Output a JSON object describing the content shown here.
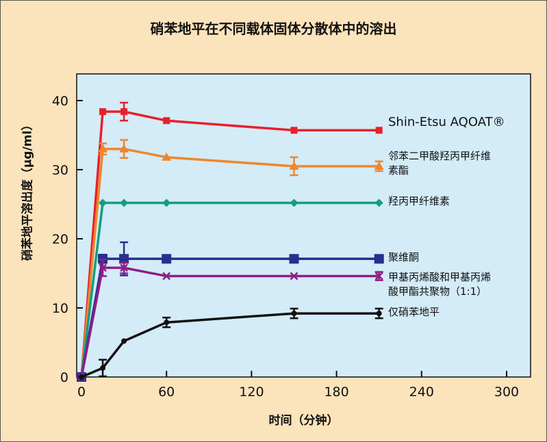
{
  "chart_data": {
    "type": "line",
    "title": "硝苯地平在不同载体固体分散体中的溶出",
    "xlabel": "时间（分钟）",
    "ylabel": "硝苯地平溶出度（μg/ml）",
    "xlim": [
      0,
      300
    ],
    "ylim": [
      0,
      40
    ],
    "xticks": [
      0,
      60,
      120,
      180,
      240,
      300
    ],
    "yticks": [
      0,
      10,
      20,
      30,
      40
    ],
    "x": [
      0,
      15,
      30,
      60,
      150,
      210
    ],
    "legend_placement": "right, labels at series ends",
    "series": [
      {
        "name": "Shin-Etsu AQOAT®",
        "color": "#e8202a",
        "marker": "square",
        "values": [
          0,
          38.4,
          38.4,
          37.1,
          35.7,
          35.7
        ],
        "errors": [
          0,
          0,
          1.3,
          0,
          0,
          0
        ]
      },
      {
        "name": "邻苯二甲酸羟丙甲纤维素酯",
        "label_lines": [
          "邻苯二甲酸羟丙甲纤维",
          "素酯"
        ],
        "color": "#f0862a",
        "marker": "triangle",
        "values": [
          0,
          33,
          33,
          31.8,
          30.5,
          30.5
        ],
        "errors": [
          0,
          0.8,
          1.3,
          0,
          1.3,
          0.7
        ]
      },
      {
        "name": "羟丙甲纤维素",
        "color": "#13a07c",
        "marker": "diamond",
        "values": [
          0,
          25.2,
          25.2,
          25.2,
          25.2,
          25.2
        ],
        "errors": [
          0,
          0,
          0,
          0,
          0,
          0
        ]
      },
      {
        "name": "聚维酮",
        "color": "#26308f",
        "marker": "bigsquare",
        "values": [
          0,
          17.1,
          17.1,
          17.1,
          17.1,
          17.1
        ],
        "errors": [
          0,
          0.6,
          2.4,
          0,
          0,
          0
        ]
      },
      {
        "name": "甲基丙烯酸和甲基丙烯酸甲酯共聚物（1:1）",
        "label_lines": [
          "甲基丙烯酸和甲基丙烯",
          "酸甲酯共聚物（1:1）"
        ],
        "color": "#8e1e86",
        "marker": "x",
        "values": [
          0,
          15.8,
          15.8,
          14.6,
          14.6,
          14.6
        ],
        "errors": [
          0,
          1.2,
          0.8,
          0,
          0,
          0.6
        ]
      },
      {
        "name": "仅硝苯地平",
        "color": "#111111",
        "marker": "circle",
        "values": [
          0,
          1.3,
          5.2,
          7.9,
          9.2,
          9.2
        ],
        "errors": [
          0,
          1.2,
          0,
          0.7,
          0.7,
          0.7
        ]
      }
    ]
  },
  "colors": {
    "background": "#fbe3bb",
    "plot_bg": "#d4ebf8"
  }
}
